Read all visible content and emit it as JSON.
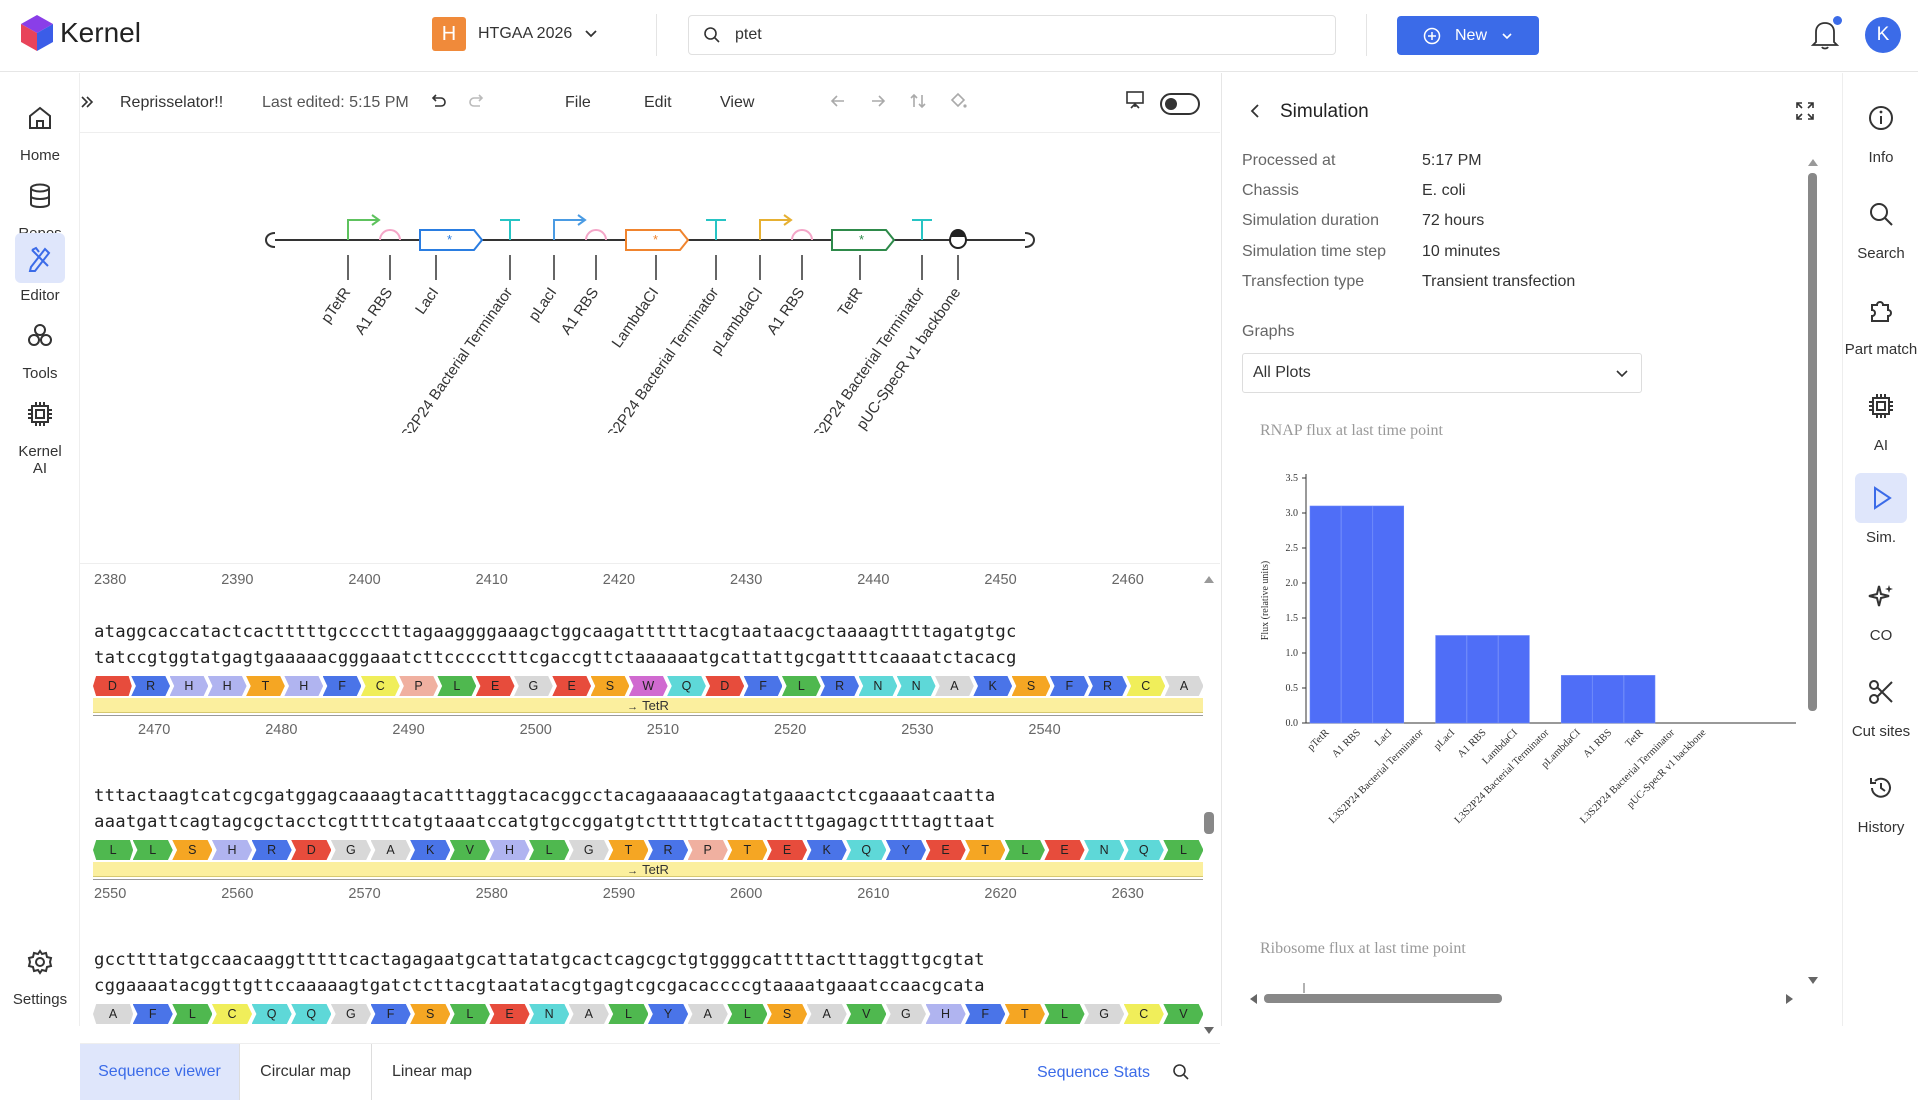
{
  "app": {
    "name": "Kernel",
    "project_initial": "H",
    "project_name": "HTGAA 2026",
    "avatar_initial": "K"
  },
  "search": {
    "value": "ptet",
    "placeholder": "Search"
  },
  "new_button": {
    "label": "New"
  },
  "left_nav": [
    {
      "label": "Home"
    },
    {
      "label": "Repos"
    },
    {
      "label": "Editor"
    },
    {
      "label": "Tools"
    },
    {
      "label": "Kernel AI"
    },
    {
      "label": "Settings"
    }
  ],
  "right_nav": [
    {
      "label": "Info"
    },
    {
      "label": "Search"
    },
    {
      "label": "Part match"
    },
    {
      "label": "AI"
    },
    {
      "label": "Sim."
    },
    {
      "label": "CO"
    },
    {
      "label": "Cut sites"
    },
    {
      "label": "History"
    }
  ],
  "editor": {
    "doc_name": "Reprisselator!!",
    "last_edited": "Last edited: 5:15 PM",
    "menu": [
      "File",
      "Edit",
      "View"
    ],
    "map_labels": [
      "pTetR",
      "A1 RBS",
      "LacI",
      "L3S2P24 Bacterial Terminator",
      "pLacI",
      "A1 RBS",
      "LambdaCI",
      "L3S2P24 Bacterial Terminator",
      "pLambdaCI",
      "A1 RBS",
      "TetR",
      "L3S2P24 Bacterial Terminator",
      "pUC-SpecR v1 backbone"
    ],
    "ruler_top": [
      "2380",
      "2390",
      "2400",
      "2410",
      "2420",
      "2430",
      "2440",
      "2450",
      "2460"
    ],
    "blocks": [
      {
        "top": "ataggcaccatactcactttttgcccctttagaaggggaaagctggcaagattttttacgtaataacgctaaaagttttagatgtgc",
        "bottom": "tatccgtggtatgagtgaaaaacgggaaatcttccccctttcgaccgttctaaaaaatgcattattgcgattttcaaaatctacacg",
        "aa": [
          "D",
          "R",
          "H",
          "H",
          "T",
          "H",
          "F",
          "C",
          "P",
          "L",
          "E",
          "G",
          "E",
          "S",
          "W",
          "Q",
          "D",
          "F",
          "L",
          "R",
          "N",
          "N",
          "A",
          "K",
          "S",
          "F",
          "R",
          "C",
          "A"
        ],
        "feature": "TetR",
        "ruler": [
          "2470",
          "2480",
          "2490",
          "2500",
          "2510",
          "2520",
          "2530",
          "2540"
        ]
      },
      {
        "top": "tttactaagtcatcgcgatggagcaaaagtacatttaggtacacggcctacagaaaaacagtatgaaactctcgaaaatcaatta",
        "bottom": "aaatgattcagtagcgctacctcgttttcatgtaaatccatgtgccggatgtctttttgtcatactttgagagcttttagttaat",
        "aa": [
          "L",
          "L",
          "S",
          "H",
          "R",
          "D",
          "G",
          "A",
          "K",
          "V",
          "H",
          "L",
          "G",
          "T",
          "R",
          "P",
          "T",
          "E",
          "K",
          "Q",
          "Y",
          "E",
          "T",
          "L",
          "E",
          "N",
          "Q",
          "L"
        ],
        "feature": "TetR",
        "ruler": [
          "2550",
          "2560",
          "2570",
          "2580",
          "2590",
          "2600",
          "2610",
          "2620",
          "2630"
        ]
      },
      {
        "top": "gccttttatgccaacaaggtttttcactagagaatgcattatatgcactcagcgctgtggggcattttactttaggttgcgtat",
        "bottom": "cggaaaatacggttgttccaaaaagtgatctcttacgtaatatacgtgagtcgcgacaccccgtaaaatgaaatccaacgcata",
        "aa": [
          "A",
          "F",
          "L",
          "C",
          "Q",
          "Q",
          "G",
          "F",
          "S",
          "L",
          "E",
          "N",
          "A",
          "L",
          "Y",
          "A",
          "L",
          "S",
          "A",
          "V",
          "G",
          "H",
          "F",
          "T",
          "L",
          "G",
          "C",
          "V"
        ]
      }
    ],
    "tabs": [
      "Sequence viewer",
      "Circular map",
      "Linear map"
    ],
    "sequence_stats": "Sequence Stats"
  },
  "simulation": {
    "title": "Simulation",
    "fields": [
      {
        "key": "Processed at",
        "value": "5:17 PM"
      },
      {
        "key": "Chassis",
        "value": "E. coli"
      },
      {
        "key": "Simulation duration",
        "value": "72 hours"
      },
      {
        "key": "Simulation time step",
        "value": "10 minutes"
      },
      {
        "key": "Transfection type",
        "value": "Transient transfection"
      }
    ],
    "graphs_label": "Graphs",
    "graph_selected": "All Plots",
    "second_chart_title": "Ribosome flux at last time point"
  },
  "chart_data": {
    "type": "bar",
    "title": "RNAP flux at last time point",
    "ylabel": "Flux (relative units)",
    "xlabel": "",
    "ylim": [
      0,
      3.5
    ],
    "yticks": [
      "0.0",
      "0.5",
      "1.0",
      "1.5",
      "2.0",
      "2.5",
      "3.0",
      "3.5"
    ],
    "categories": [
      "pTetR",
      "A1 RBS",
      "LacI",
      "L3S2P24 Bacterial Terminator",
      "pLacI",
      "A1 RBS",
      "LambdaCI",
      "L3S2P24 Bacterial Terminator",
      "pLambdaCI",
      "A1 RBS",
      "TetR",
      "L3S2P24 Bacterial Terminator",
      "pUC-SpecR v1 backbone"
    ],
    "values": [
      3.1,
      3.1,
      3.1,
      0,
      1.25,
      1.25,
      1.25,
      0,
      0.68,
      0.68,
      0.68,
      0,
      0
    ],
    "bar_color": "#4f6ef7",
    "grid": false
  },
  "colors": {
    "accent": "#3b6be8",
    "project_badge": "#f08a3a",
    "feature": "#fbef9e"
  }
}
